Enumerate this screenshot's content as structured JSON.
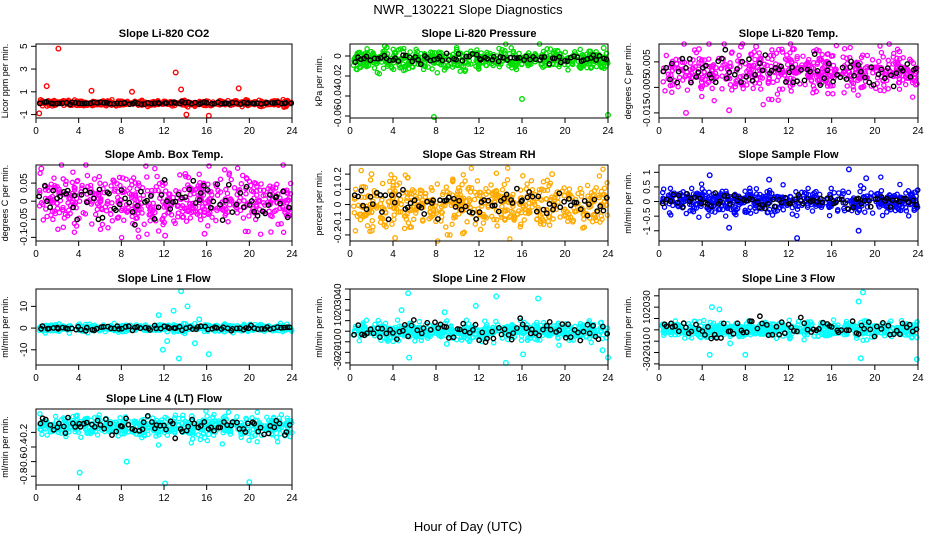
{
  "figure": {
    "title": "NWR_130221  Slope Diagnostics",
    "xlabel": "Hour of Day (UTC)"
  },
  "chart_data": [
    {
      "type": "scatter",
      "title": "Slope Li-820 CO2",
      "ylabel": "Licor ppm per min.",
      "color": "#ff0000",
      "xlim": [
        0,
        24
      ],
      "ylim": [
        -1.3,
        5.2
      ],
      "xticks": [
        0,
        4,
        8,
        12,
        16,
        20,
        24
      ],
      "yticks": [
        -1,
        1,
        3,
        5
      ],
      "center": 0.0,
      "spread": 0.12,
      "black_spread": 0.05,
      "outliers": [
        [
          2.1,
          4.8
        ],
        [
          13.1,
          2.7
        ],
        [
          13.6,
          1.2
        ],
        [
          1.0,
          1.5
        ],
        [
          5.2,
          1.1
        ],
        [
          9.0,
          1.0
        ],
        [
          19.0,
          1.3
        ],
        [
          0.3,
          -0.9
        ],
        [
          14.1,
          -1.0
        ],
        [
          16.2,
          -1.1
        ]
      ]
    },
    {
      "type": "scatter",
      "title": "Slope Li-820 Pressure",
      "ylabel": "kPa per min.",
      "color": "#00dd00",
      "xlim": [
        0,
        24
      ],
      "ylim": [
        -0.062,
        0.012
      ],
      "xticks": [
        0,
        4,
        8,
        12,
        16,
        20,
        24
      ],
      "yticks": [
        0.0,
        -0.02,
        -0.04,
        -0.06
      ],
      "center": -0.003,
      "spread": 0.005,
      "black_spread": 0.002,
      "outliers": [
        [
          7.8,
          -0.061
        ],
        [
          16.0,
          -0.043
        ],
        [
          24.0,
          -0.059
        ],
        [
          23.6,
          0.008
        ],
        [
          23.8,
          -0.01
        ],
        [
          21.5,
          -0.011
        ]
      ]
    },
    {
      "type": "scatter",
      "title": "Slope Li-820 Temp.",
      "ylabel": "degrees C per min.",
      "color": "#ff00ff",
      "xlim": [
        0,
        24
      ],
      "ylim": [
        -0.017,
        0.012
      ],
      "xticks": [
        0,
        4,
        8,
        12,
        16,
        20,
        24
      ],
      "yticks": [
        -0.015,
        -0.005,
        0.005
      ],
      "center": 0.001,
      "spread": 0.004,
      "black_spread": 0.003,
      "outliers": [
        [
          7.6,
          0.011
        ],
        [
          2.5,
          -0.015
        ],
        [
          6.5,
          -0.014
        ],
        [
          9.0,
          0.011
        ],
        [
          12.5,
          0.01
        ],
        [
          3.7,
          0.01
        ]
      ]
    },
    {
      "type": "scatter",
      "title": "Slope Amb. Box Temp.",
      "ylabel": "degrees C per min.",
      "color": "#ff00ff",
      "xlim": [
        0,
        24
      ],
      "ylim": [
        -0.11,
        0.1
      ],
      "xticks": [
        0,
        4,
        8,
        12,
        16,
        20,
        24
      ],
      "yticks": [
        -0.1,
        -0.05,
        0.0,
        0.05
      ],
      "center": 0.0,
      "spread": 0.035,
      "black_spread": 0.025,
      "outliers": [
        [
          14.0,
          0.075
        ],
        [
          15.8,
          -0.09
        ],
        [
          12.1,
          -0.095
        ],
        [
          0.5,
          0.09
        ]
      ]
    },
    {
      "type": "scatter",
      "title": "Slope Gas Stream RH",
      "ylabel": "percent per min.",
      "color": "#ffaa00",
      "xlim": [
        0,
        24
      ],
      "ylim": [
        -0.24,
        0.26
      ],
      "xticks": [
        0,
        4,
        8,
        12,
        16,
        20,
        24
      ],
      "yticks": [
        -0.2,
        -0.1,
        0.0,
        0.1,
        0.2
      ],
      "center": 0.0,
      "spread": 0.08,
      "black_spread": 0.05,
      "outliers": [
        [
          4.2,
          -0.22
        ],
        [
          18.8,
          0.2
        ],
        [
          10.5,
          -0.19
        ],
        [
          2.0,
          0.2
        ]
      ]
    },
    {
      "type": "scatter",
      "title": "Slope Sample Flow",
      "ylabel": "ml/min per min.",
      "color": "#0000ff",
      "xlim": [
        0,
        24
      ],
      "ylim": [
        -1.35,
        1.25
      ],
      "xticks": [
        0,
        4,
        8,
        12,
        16,
        20,
        24
      ],
      "yticks": [
        -1.0,
        -0.5,
        0.0,
        0.5,
        1.0
      ],
      "center": 0.0,
      "spread": 0.2,
      "black_spread": 0.12,
      "outliers": [
        [
          12.8,
          -1.25
        ],
        [
          17.6,
          1.1
        ],
        [
          4.7,
          0.9
        ],
        [
          6.5,
          -0.9
        ],
        [
          18.5,
          -1.0
        ],
        [
          19.2,
          0.8
        ],
        [
          10.2,
          0.75
        ]
      ]
    },
    {
      "type": "scatter",
      "title": "Slope Line 1 Flow",
      "ylabel": "ml/min per min.",
      "color": "#00ffff",
      "xlim": [
        0,
        24
      ],
      "ylim": [
        -17,
        18
      ],
      "xticks": [
        0,
        4,
        8,
        12,
        16,
        20,
        24
      ],
      "yticks": [
        -10,
        0,
        10
      ],
      "center": 0.0,
      "spread": 0.8,
      "black_spread": 0.5,
      "outliers": [
        [
          13.6,
          17
        ],
        [
          12.9,
          8
        ],
        [
          14.2,
          10
        ],
        [
          13.4,
          -14
        ],
        [
          11.9,
          -10
        ],
        [
          16.2,
          -12
        ],
        [
          11.5,
          6
        ],
        [
          15.3,
          4
        ],
        [
          12.3,
          -6
        ],
        [
          14.9,
          -7
        ]
      ]
    },
    {
      "type": "scatter",
      "title": "Slope Line 2 Flow",
      "ylabel": "ml/min per min.",
      "color": "#00ffff",
      "xlim": [
        0,
        24
      ],
      "ylim": [
        -32,
        40
      ],
      "xticks": [
        0,
        4,
        8,
        12,
        16,
        20,
        24
      ],
      "yticks": [
        -30,
        -20,
        -10,
        0,
        10,
        20,
        30,
        40
      ],
      "center": 0.0,
      "spread": 4,
      "black_spread": 5,
      "outliers": [
        [
          5.4,
          36
        ],
        [
          13.6,
          33
        ],
        [
          17.5,
          31
        ],
        [
          4.8,
          20
        ],
        [
          8.8,
          18
        ],
        [
          11.7,
          24
        ],
        [
          14.5,
          -30
        ],
        [
          16.1,
          -22
        ],
        [
          5.5,
          -25
        ],
        [
          24.0,
          -25
        ],
        [
          23.5,
          -18
        ],
        [
          9.0,
          -12
        ]
      ]
    },
    {
      "type": "scatter",
      "title": "Slope Line 3 Flow",
      "ylabel": "ml/min per min.",
      "color": "#00ffff",
      "xlim": [
        0,
        24
      ],
      "ylim": [
        -31,
        36
      ],
      "xticks": [
        0,
        4,
        8,
        12,
        16,
        20,
        24
      ],
      "yticks": [
        -30,
        -20,
        -10,
        0,
        10,
        20,
        30
      ],
      "center": 0.0,
      "spread": 3.5,
      "black_spread": 5,
      "outliers": [
        [
          18.9,
          33
        ],
        [
          4.9,
          20
        ],
        [
          5.6,
          18
        ],
        [
          18.5,
          25
        ],
        [
          4.7,
          -22
        ],
        [
          8.0,
          -22
        ],
        [
          18.7,
          -25
        ],
        [
          23.9,
          -26
        ],
        [
          6.6,
          -12
        ]
      ]
    },
    {
      "type": "scatter",
      "title": "Slope Line 4 (LT) Flow",
      "ylabel": "ml/min per min.",
      "color": "#00ffff",
      "xlim": [
        0,
        24
      ],
      "ylim": [
        -0.92,
        0.12
      ],
      "xticks": [
        0,
        4,
        8,
        12,
        16,
        20,
        24
      ],
      "yticks": [
        -0.2,
        -0.4,
        -0.6,
        -0.8
      ],
      "center": -0.12,
      "spread": 0.07,
      "black_spread": 0.06,
      "outliers": [
        [
          4.1,
          -0.75
        ],
        [
          12.1,
          -0.9
        ],
        [
          20.0,
          -0.88
        ],
        [
          8.5,
          -0.6
        ],
        [
          14.6,
          0.02
        ]
      ]
    }
  ]
}
